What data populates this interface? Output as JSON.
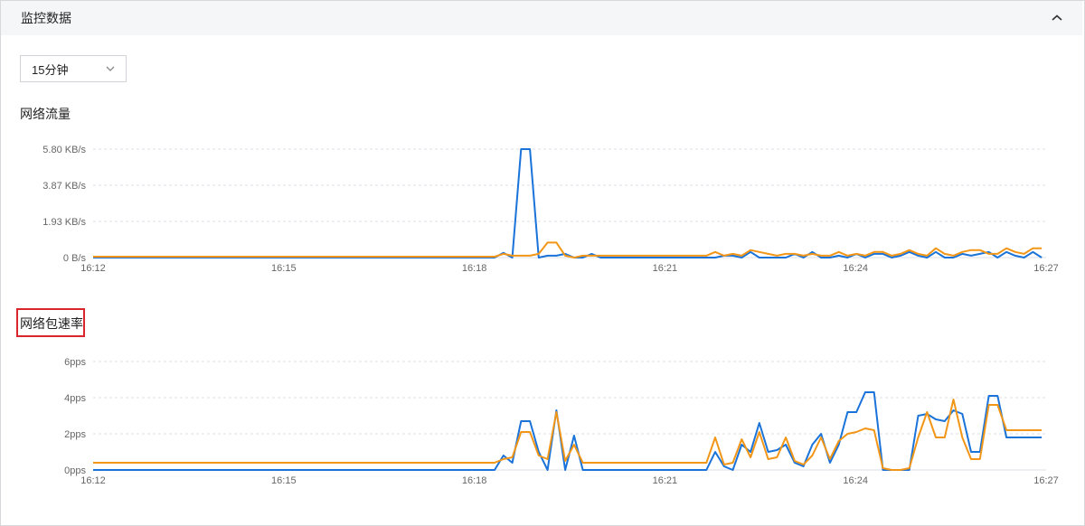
{
  "panel": {
    "title": "监控数据"
  },
  "time_range": {
    "selected": "15分钟"
  },
  "icons": {
    "collapse": "chevron-up-icon",
    "dropdown": "chevron-down-icon"
  },
  "colors": {
    "series_blue": "#1a73d9",
    "series_orange": "#f29618",
    "grid": "#dcdfe4",
    "highlight": "#d9252c"
  },
  "chart_data": [
    {
      "type": "line",
      "title": "网络流量",
      "x_ticks": [
        "16:12",
        "16:15",
        "16:18",
        "16:21",
        "16:24",
        "16:27"
      ],
      "y_ticks": [
        "0 B/s",
        "1.93 KB/s",
        "3.87 KB/s",
        "5.80 KB/s"
      ],
      "ylim": [
        0,
        5.8
      ],
      "y_unit": "KB/s",
      "grid": true,
      "x": [
        16.2,
        16.45,
        16.7,
        16.95,
        17.2,
        17.45,
        17.7,
        17.95,
        18.2,
        18.45,
        18.7,
        18.95,
        19.2,
        19.45,
        19.7,
        19.95,
        20.2,
        20.45,
        20.55,
        20.65,
        20.75,
        20.85,
        20.95,
        21.05,
        21.15,
        21.25,
        21.35,
        21.45,
        21.55,
        21.65,
        21.75,
        21.85,
        21.95,
        22.05,
        22.15,
        22.25,
        22.35,
        22.45,
        22.55,
        22.65,
        22.75,
        22.85,
        22.95,
        23.05,
        23.15,
        23.25,
        23.35,
        23.45,
        23.55,
        23.65,
        23.75,
        23.85,
        23.95,
        24.05,
        24.15,
        24.25,
        24.35,
        24.45,
        24.55,
        24.65,
        24.75,
        24.85,
        24.95,
        25.05,
        25.15,
        25.25,
        25.35,
        25.45,
        25.55,
        25.65,
        25.75,
        25.85,
        25.95,
        26.05,
        26.15,
        26.25,
        26.35,
        26.45,
        26.55,
        26.65,
        26.75,
        26.85,
        26.95
      ],
      "series": [
        {
          "values": [
            0,
            0,
            0,
            0,
            0,
            0,
            0,
            0,
            0,
            0,
            0,
            0,
            0,
            0,
            0,
            0,
            0,
            0,
            0,
            0,
            0,
            0.25,
            0,
            5.8,
            5.8,
            0,
            0.1,
            0.1,
            0.2,
            0,
            0,
            0.2,
            0,
            0,
            0,
            0,
            0,
            0,
            0,
            0,
            0,
            0,
            0,
            0,
            0,
            0,
            0.1,
            0.1,
            0,
            0.3,
            0,
            0,
            0,
            0,
            0.2,
            0,
            0.3,
            0,
            0,
            0.1,
            0,
            0.2,
            0,
            0.2,
            0.2,
            0,
            0.1,
            0.3,
            0.1,
            0,
            0.3,
            0,
            0,
            0.2,
            0.1,
            0.2,
            0.3,
            0,
            0.3,
            0.1,
            0,
            0.3,
            0
          ]
        },
        {
          "values": [
            0.05,
            0.05,
            0.05,
            0.05,
            0.05,
            0.05,
            0.05,
            0.05,
            0.05,
            0.05,
            0.05,
            0.05,
            0.05,
            0.05,
            0.05,
            0.05,
            0.05,
            0.05,
            0.05,
            0.05,
            0.05,
            0.2,
            0.1,
            0.1,
            0.1,
            0.2,
            0.8,
            0.8,
            0.1,
            0,
            0.1,
            0.1,
            0.1,
            0.1,
            0.1,
            0.1,
            0.1,
            0.1,
            0.1,
            0.1,
            0.1,
            0.1,
            0.1,
            0.1,
            0.1,
            0.3,
            0.1,
            0.2,
            0.1,
            0.4,
            0.3,
            0.2,
            0.1,
            0.2,
            0.2,
            0.1,
            0.2,
            0.1,
            0.1,
            0.3,
            0.1,
            0.2,
            0.1,
            0.3,
            0.3,
            0.1,
            0.2,
            0.4,
            0.2,
            0.1,
            0.5,
            0.2,
            0.1,
            0.3,
            0.4,
            0.4,
            0.2,
            0.2,
            0.5,
            0.3,
            0.2,
            0.5,
            0.5
          ]
        }
      ]
    },
    {
      "type": "line",
      "title": "网络包速率",
      "x_ticks": [
        "16:12",
        "16:15",
        "16:18",
        "16:21",
        "16:24",
        "16:27"
      ],
      "y_ticks": [
        "0pps",
        "2pps",
        "4pps",
        "6pps"
      ],
      "ylim": [
        0,
        6
      ],
      "y_unit": "pps",
      "grid": true,
      "x": [
        16.2,
        16.45,
        16.7,
        16.95,
        17.2,
        17.45,
        17.7,
        17.95,
        18.2,
        18.45,
        18.7,
        18.95,
        19.2,
        19.45,
        19.7,
        19.95,
        20.2,
        20.45,
        20.55,
        20.65,
        20.75,
        20.85,
        20.95,
        21.05,
        21.15,
        21.25,
        21.35,
        21.45,
        21.55,
        21.65,
        21.75,
        21.85,
        21.95,
        22.05,
        22.15,
        22.25,
        22.35,
        22.45,
        22.55,
        22.65,
        22.75,
        22.85,
        22.95,
        23.05,
        23.15,
        23.25,
        23.35,
        23.45,
        23.55,
        23.65,
        23.75,
        23.85,
        23.95,
        24.05,
        24.15,
        24.25,
        24.35,
        24.45,
        24.55,
        24.65,
        24.75,
        24.85,
        24.95,
        25.05,
        25.15,
        25.25,
        25.35,
        25.45,
        25.55,
        25.65,
        25.75,
        25.85,
        25.95,
        26.05,
        26.15,
        26.25,
        26.35,
        26.45,
        26.55,
        26.65,
        26.75,
        26.85,
        26.95
      ],
      "series": [
        {
          "values": [
            0,
            0,
            0,
            0,
            0,
            0,
            0,
            0,
            0,
            0,
            0,
            0,
            0,
            0,
            0,
            0,
            0,
            0,
            0,
            0,
            0,
            0.8,
            0.4,
            2.7,
            2.7,
            1.0,
            0,
            3.3,
            0,
            1.9,
            0,
            0,
            0,
            0,
            0,
            0,
            0,
            0,
            0,
            0,
            0,
            0,
            0,
            0,
            0,
            1.0,
            0.2,
            0,
            1.4,
            1.0,
            2.6,
            1.0,
            1.1,
            1.4,
            0.4,
            0.2,
            1.4,
            2.0,
            0.4,
            1.4,
            3.2,
            3.2,
            4.3,
            4.3,
            0,
            0,
            0,
            0,
            3.0,
            3.1,
            2.8,
            2.7,
            3.3,
            3.1,
            1.0,
            1.0,
            4.1,
            4.1,
            1.8,
            1.8,
            1.8,
            1.8,
            1.8
          ]
        },
        {
          "values": [
            0.4,
            0.4,
            0.4,
            0.4,
            0.4,
            0.4,
            0.4,
            0.4,
            0.4,
            0.4,
            0.4,
            0.4,
            0.4,
            0.4,
            0.4,
            0.4,
            0.4,
            0.4,
            0.4,
            0.4,
            0.4,
            0.6,
            0.7,
            2.1,
            2.1,
            0.8,
            0.6,
            3.2,
            0.5,
            1.4,
            0.4,
            0.4,
            0.4,
            0.4,
            0.4,
            0.4,
            0.4,
            0.4,
            0.4,
            0.4,
            0.4,
            0.4,
            0.4,
            0.4,
            0.4,
            1.8,
            0.3,
            0.4,
            1.7,
            0.7,
            2.1,
            0.6,
            0.7,
            1.8,
            0.5,
            0.3,
            0.8,
            1.8,
            0.6,
            1.6,
            2.0,
            2.1,
            2.3,
            2.2,
            0.1,
            0,
            0,
            0.1,
            1.8,
            3.2,
            1.8,
            1.8,
            3.9,
            1.8,
            0.6,
            0.6,
            3.6,
            3.6,
            2.2,
            2.2,
            2.2,
            2.2,
            2.2
          ]
        }
      ]
    }
  ]
}
